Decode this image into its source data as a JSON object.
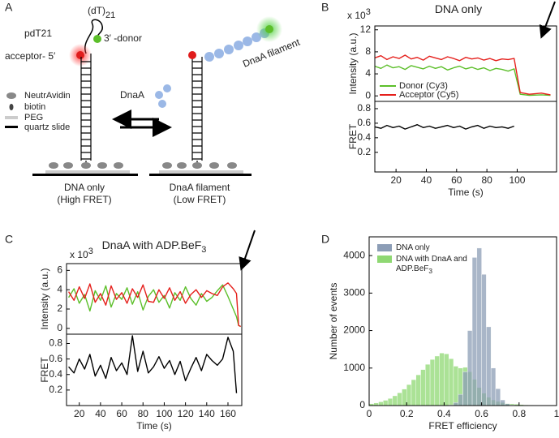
{
  "panel_labels": [
    "A",
    "B",
    "C",
    "D"
  ],
  "diagram": {
    "construct": "pdT21",
    "tail": "(dT)",
    "tail_subscript": "21",
    "donor": "3′ -donor",
    "acceptor": "acceptor- 5′",
    "filament": "DnaA filament",
    "protein": "DnaA",
    "legend": [
      "NeutrAvidin",
      "biotin",
      "PEG",
      "quartz slide"
    ],
    "states": [
      {
        "name": "DNA only",
        "fret": "(High FRET)"
      },
      {
        "name": "DnaA filament",
        "fret": "(Low FRET)"
      }
    ]
  },
  "chart_data": [
    {
      "type": "line",
      "title": "DNA only",
      "y_multiplier": "x 10",
      "y_multiplier_exponent": "3",
      "ylabel": "Intensity  (a.u.)",
      "x": [
        6,
        10,
        14,
        18,
        22,
        26,
        30,
        34,
        38,
        42,
        46,
        50,
        54,
        58,
        62,
        66,
        70,
        74,
        78,
        82,
        86,
        90,
        94,
        98,
        102,
        108,
        116,
        122
      ],
      "xlim": [
        6,
        126
      ],
      "ylim": [
        -1,
        12.7
      ],
      "yticks": [
        0,
        4,
        8,
        12
      ],
      "legend": "lower left",
      "series": [
        {
          "name": "Donor (Cy3)",
          "color": "#5cbf2a",
          "values": [
            5.4,
            5.0,
            5.6,
            5.1,
            5.3,
            4.8,
            5.5,
            5.2,
            4.9,
            5.4,
            5.0,
            5.3,
            4.7,
            5.1,
            5.4,
            4.9,
            5.2,
            4.8,
            5.1,
            4.6,
            5.0,
            4.8,
            4.5,
            4.9,
            0.3,
            0.1,
            0.2,
            0.1
          ]
        },
        {
          "name": "Acceptor (Cy5)",
          "color": "#e5201c",
          "values": [
            6.9,
            7.3,
            6.6,
            7.1,
            6.8,
            7.4,
            6.7,
            7.0,
            6.5,
            7.2,
            6.9,
            6.6,
            7.1,
            6.8,
            6.4,
            7.0,
            6.7,
            6.9,
            6.5,
            6.8,
            6.4,
            6.7,
            6.6,
            6.8,
            0.6,
            0.3,
            0.5,
            0.2
          ]
        }
      ]
    },
    {
      "type": "line",
      "ylabel": "FRET",
      "xlabel": "Time (s)",
      "x": [
        6,
        10,
        14,
        18,
        22,
        26,
        30,
        34,
        38,
        42,
        46,
        50,
        54,
        58,
        62,
        66,
        70,
        74,
        78,
        82,
        86,
        90,
        94,
        98
      ],
      "xlim": [
        6,
        126
      ],
      "xticks": [
        20,
        40,
        60,
        80,
        100
      ],
      "ylim": [
        -0.07,
        0.9
      ],
      "yticks": [
        0.2,
        0.4,
        0.6,
        0.8
      ],
      "series": [
        {
          "color": "#000000",
          "values": [
            0.55,
            0.53,
            0.57,
            0.54,
            0.56,
            0.52,
            0.55,
            0.58,
            0.54,
            0.56,
            0.53,
            0.55,
            0.57,
            0.54,
            0.56,
            0.52,
            0.55,
            0.57,
            0.53,
            0.56,
            0.54,
            0.55,
            0.53,
            0.56
          ]
        }
      ]
    },
    {
      "type": "line",
      "title": "DnaA with ADP.BeF",
      "title_subscript": "3",
      "y_multiplier": "x 10",
      "y_multiplier_exponent": "3",
      "ylabel": "Intensity  (a.u.)",
      "x": [
        10,
        15,
        20,
        25,
        30,
        35,
        40,
        45,
        50,
        55,
        60,
        65,
        70,
        75,
        80,
        85,
        90,
        95,
        100,
        105,
        110,
        115,
        120,
        125,
        130,
        135,
        140,
        145,
        150,
        155,
        160,
        165,
        168,
        170,
        172
      ],
      "xlim": [
        8,
        173
      ],
      "ylim": [
        -0.6,
        6.7
      ],
      "yticks": [
        0,
        2,
        4,
        6
      ],
      "series": [
        {
          "color": "#5cbf2a",
          "values": [
            3.2,
            4.1,
            2.6,
            3.5,
            1.8,
            3.9,
            2.9,
            4.4,
            2.2,
            3.6,
            3.0,
            4.2,
            2.5,
            3.8,
            1.9,
            3.3,
            4.0,
            2.7,
            3.4,
            2.1,
            3.7,
            2.9,
            4.3,
            3.1,
            2.4,
            3.6,
            2.8,
            3.2,
            3.9,
            4.5,
            3.3,
            2.0,
            1.2,
            0.3,
            0.2
          ]
        },
        {
          "color": "#e5201c",
          "values": [
            3.8,
            2.9,
            4.3,
            3.1,
            4.6,
            2.7,
            3.6,
            2.4,
            4.4,
            3.0,
            3.7,
            2.6,
            4.1,
            3.2,
            4.5,
            2.8,
            2.7,
            4.0,
            3.1,
            4.2,
            2.9,
            3.8,
            2.6,
            3.5,
            4.0,
            3.2,
            3.9,
            3.6,
            3.4,
            4.3,
            4.7,
            4.1,
            3.6,
            0.3,
            0.2
          ]
        }
      ]
    },
    {
      "type": "line",
      "ylabel": "FRET",
      "xlabel": "Time (s)",
      "x": [
        10,
        15,
        20,
        25,
        30,
        35,
        40,
        45,
        50,
        55,
        60,
        65,
        70,
        75,
        80,
        85,
        90,
        95,
        100,
        105,
        110,
        115,
        120,
        125,
        130,
        135,
        140,
        145,
        150,
        155,
        160,
        165,
        168
      ],
      "xlim": [
        8,
        173
      ],
      "xticks": [
        20,
        40,
        60,
        80,
        100,
        120,
        140,
        160
      ],
      "ylim": [
        0,
        0.92
      ],
      "yticks": [
        0.2,
        0.4,
        0.6,
        0.8
      ],
      "series": [
        {
          "color": "#000000",
          "values": [
            0.5,
            0.42,
            0.6,
            0.47,
            0.66,
            0.38,
            0.52,
            0.35,
            0.62,
            0.45,
            0.55,
            0.4,
            0.9,
            0.44,
            0.7,
            0.42,
            0.5,
            0.63,
            0.48,
            0.58,
            0.4,
            0.57,
            0.32,
            0.48,
            0.62,
            0.45,
            0.66,
            0.58,
            0.52,
            0.6,
            0.88,
            0.7,
            0.16
          ]
        }
      ]
    },
    {
      "type": "histogram",
      "xlabel": "FRET efficiency",
      "ylabel": "Number of events",
      "legend": "upper left",
      "bins": [
        0,
        0.025,
        0.05,
        0.075,
        0.1,
        0.125,
        0.15,
        0.175,
        0.2,
        0.225,
        0.25,
        0.275,
        0.3,
        0.325,
        0.35,
        0.375,
        0.4,
        0.425,
        0.45,
        0.475,
        0.5,
        0.525,
        0.55,
        0.575,
        0.6,
        0.625,
        0.65,
        0.675,
        0.7,
        0.725,
        0.75,
        0.775,
        0.8,
        0.825,
        0.85,
        0.875,
        0.9,
        0.925,
        0.95,
        0.975,
        1
      ],
      "xlim": [
        0,
        1
      ],
      "xticks": [
        0,
        0.2,
        0.4,
        0.6,
        0.8,
        1
      ],
      "ylim": [
        0,
        4500
      ],
      "yticks": [
        0,
        1000,
        2000,
        3000,
        4000
      ],
      "series": [
        {
          "name": "DNA with DnaA and ADP.BeF",
          "name_subscript": "3",
          "color": "#8fd873",
          "values": [
            50,
            70,
            100,
            140,
            190,
            260,
            340,
            440,
            560,
            690,
            820,
            960,
            1100,
            1230,
            1320,
            1400,
            1380,
            1250,
            1050,
            1000,
            1020,
            900,
            700,
            480,
            330,
            220,
            150,
            110,
            80,
            60,
            45,
            35,
            25,
            18,
            12,
            8,
            5,
            3,
            2,
            1
          ]
        },
        {
          "name": "DNA only",
          "color": "#8c9db6",
          "values": [
            0,
            0,
            0,
            0,
            0,
            0,
            0,
            0,
            0,
            0,
            0,
            0,
            0,
            0,
            0,
            0,
            0,
            20,
            80,
            300,
            900,
            2000,
            3950,
            4200,
            3500,
            2100,
            1000,
            450,
            150,
            50,
            15,
            0,
            0,
            0,
            0,
            0,
            0,
            0,
            0,
            0
          ]
        }
      ]
    }
  ]
}
